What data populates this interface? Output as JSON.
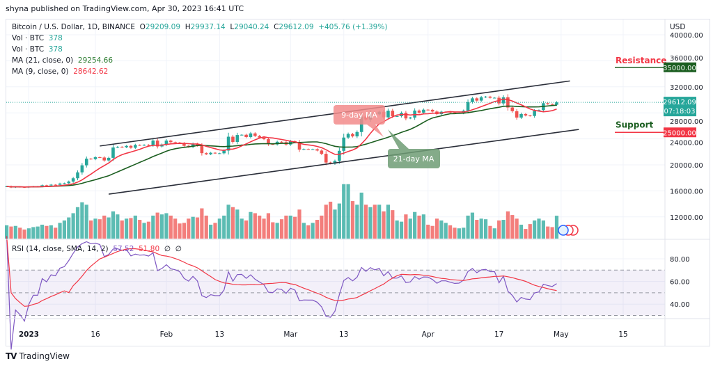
{
  "publisher_line": "shyna published on TradingView.com, Apr 30, 2023 16:41 UTC",
  "legend": {
    "symbol": "Bitcoin / U.S. Dollar, 1D, BINANCE",
    "open_label": "O",
    "open": "29209.09",
    "high_label": "H",
    "high": "29937.14",
    "low_label": "L",
    "low": "29040.24",
    "close_label": "C",
    "close": "29612.09",
    "change": "+405.76 (+1.39%)",
    "vol1_label": "Vol · BTC",
    "vol1": "378",
    "vol2_label": "Vol · BTC",
    "vol2": "378",
    "ma21_label": "MA (21, close, 0)",
    "ma21": "29254.66",
    "ma9_label": "MA (9, close, 0)",
    "ma9": "28642.62"
  },
  "rsi_legend": {
    "label": "RSI (14, close, SMA, 14, 2)",
    "rsi": "57.52",
    "sma": "51.80",
    "extra1": "∅",
    "extra2": "∅"
  },
  "price_axis": {
    "currency": "USD",
    "ticks": [
      "40000.00",
      "36000.00",
      "32000.00",
      "28000.00",
      "24000.00",
      "20000.00",
      "16000.00",
      "12000.00"
    ],
    "last_price": "29612.09",
    "countdown": "07:18:03",
    "resistance_tag": "35000.00",
    "support_tag": "25000.00"
  },
  "rsi_axis": {
    "ticks": [
      "80.00",
      "60.00",
      "40.00"
    ]
  },
  "time_axis": [
    {
      "label": "2023",
      "date": "2023-01-01",
      "bold": true
    },
    {
      "label": "16",
      "date": "2023-01-16"
    },
    {
      "label": "Feb",
      "date": "2023-02-01"
    },
    {
      "label": "13",
      "date": "2023-02-13"
    },
    {
      "label": "Mar",
      "date": "2023-03-01"
    },
    {
      "label": "13",
      "date": "2023-03-13"
    },
    {
      "label": "Apr",
      "date": "2023-04-01"
    },
    {
      "label": "17",
      "date": "2023-04-17"
    },
    {
      "label": "May",
      "date": "2023-05-01"
    },
    {
      "label": "15",
      "date": "2023-05-15"
    }
  ],
  "annotations": {
    "resistance": {
      "label": "Resistance",
      "price": 35000
    },
    "support": {
      "label": "Support",
      "price": 25000
    },
    "ma9_callout": "9-day MA",
    "ma21_callout": "21-day MA",
    "channel_upper": [
      {
        "date": "2023-01-17",
        "price": 22900
      },
      {
        "date": "2023-05-03",
        "price": 32900
      }
    ],
    "channel_lower": [
      {
        "date": "2023-01-19",
        "price": 15500
      },
      {
        "date": "2023-05-05",
        "price": 25450
      }
    ]
  },
  "colors": {
    "up": "#26a69a",
    "down": "#ef5350",
    "ma9": "#f23645",
    "ma21": "#1b5e20",
    "rsi": "#7e57c2",
    "rsi_sma": "#f23645",
    "resistance": "#1b5e20",
    "support": "#f23645"
  },
  "footer": {
    "brand": "TradingView"
  },
  "chart_data": {
    "type": "candlestick",
    "start_date": "2022-12-27",
    "close": [
      16700,
      16550,
      16630,
      16600,
      16540,
      16620,
      16680,
      16680,
      16860,
      16830,
      16950,
      16940,
      17130,
      17180,
      17440,
      17940,
      18850,
      19930,
      20950,
      20880,
      21180,
      21130,
      20680,
      21080,
      22670,
      22780,
      22710,
      22920,
      22630,
      23060,
      23010,
      23080,
      23030,
      23740,
      22830,
      23130,
      23730,
      23490,
      23430,
      23330,
      22930,
      22760,
      23240,
      22960,
      21800,
      21630,
      21860,
      21780,
      21780,
      22200,
      24330,
      23530,
      24590,
      24630,
      24280,
      24840,
      24450,
      24190,
      23950,
      23190,
      23150,
      23550,
      23490,
      23130,
      23640,
      23470,
      22350,
      22430,
      22410,
      22410,
      22200,
      21700,
      20360,
      20190,
      20620,
      22160,
      24200,
      24750,
      24380,
      25050,
      27430,
      26970,
      28040,
      27770,
      28170,
      27310,
      28330,
      27490,
      27490,
      28000,
      27140,
      27270,
      28350,
      28030,
      28480,
      28460,
      28200,
      27800,
      28170,
      28170,
      28040,
      27930,
      27960,
      28330,
      29650,
      30230,
      29880,
      30390,
      30490,
      30320,
      30320,
      29450,
      30390,
      28820,
      28250,
      27270,
      27820,
      27590,
      27520,
      28300,
      28420,
      29480,
      29340,
      29240,
      29612
    ],
    "volume": [
      220,
      200,
      210,
      180,
      150,
      170,
      190,
      200,
      230,
      210,
      220,
      180,
      260,
      300,
      350,
      420,
      520,
      600,
      560,
      300,
      330,
      320,
      380,
      350,
      450,
      400,
      300,
      330,
      340,
      380,
      310,
      260,
      280,
      380,
      430,
      400,
      420,
      380,
      330,
      250,
      260,
      330,
      360,
      350,
      500,
      380,
      230,
      260,
      330,
      380,
      560,
      520,
      480,
      330,
      300,
      440,
      420,
      380,
      330,
      420,
      270,
      260,
      320,
      380,
      380,
      360,
      480,
      260,
      220,
      260,
      310,
      380,
      560,
      610,
      480,
      580,
      900,
      900,
      620,
      560,
      760,
      560,
      520,
      560,
      560,
      450,
      560,
      470,
      300,
      280,
      400,
      330,
      440,
      380,
      400,
      230,
      210,
      330,
      300,
      260,
      220,
      180,
      170,
      180,
      380,
      430,
      310,
      330,
      320,
      210,
      170,
      300,
      310,
      450,
      390,
      330,
      230,
      160,
      240,
      300,
      330,
      300,
      200,
      190,
      378
    ],
    "ma_periods": [
      9,
      21
    ],
    "rsi_period": 14,
    "rsi_levels": [
      30,
      50,
      70
    ],
    "price_range": [
      8000,
      41500
    ],
    "rsi_range": [
      20,
      95
    ]
  }
}
